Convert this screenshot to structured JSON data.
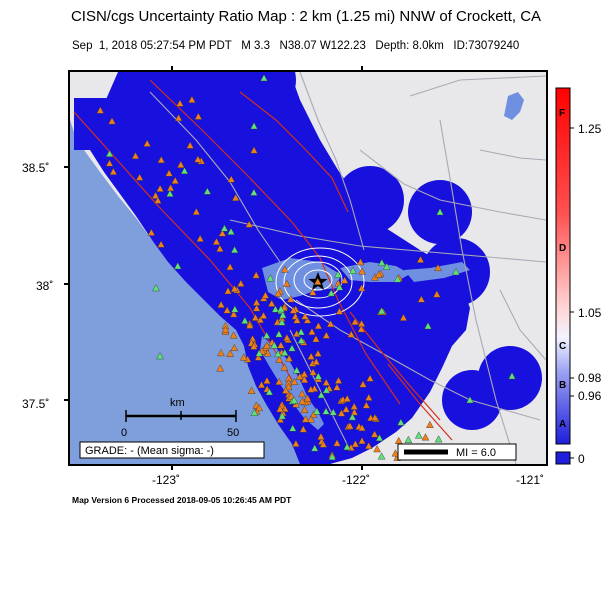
{
  "title": "CISN/cgs Uncertainty Ratio Map : 2 km (1.25 mi) NNW of Crockett, CA",
  "subtitle": "Sep  1, 2018 05:27:54 PM PDT   M 3.3   N38.07 W122.23   Depth: 8.0km   ID:73079240",
  "footer": "Map Version 6 Processed 2018-09-05 10:26:45 AM PDT",
  "axes": {
    "lat_ticks": [
      "38.5˚",
      "38˚",
      "37.5˚"
    ],
    "lon_ticks": [
      "-123˚",
      "-122˚",
      "-121˚"
    ]
  },
  "scale_bar": {
    "unit": "km",
    "min_label": "0",
    "max_label": "50"
  },
  "grade_box": "GRADE: - (Mean sigma: -)",
  "mi_legend": "MI = 6.0",
  "colorbar": {
    "value_labels": [
      "1.25",
      "1.05",
      "0.98",
      "0.96",
      "0"
    ],
    "grade_letters": [
      "F",
      "D",
      "C",
      "B",
      "A"
    ]
  },
  "colors": {
    "ocean": "#7f9fdc",
    "land": "#e8e8ea",
    "uncertainty_blue": "#1810dc",
    "station_orange": "#ef7f1a",
    "station_green": "#5de27a",
    "fault_red": "#d23020",
    "road_gray": "#a9a9b6",
    "water_blue": "#6f8fe0"
  }
}
